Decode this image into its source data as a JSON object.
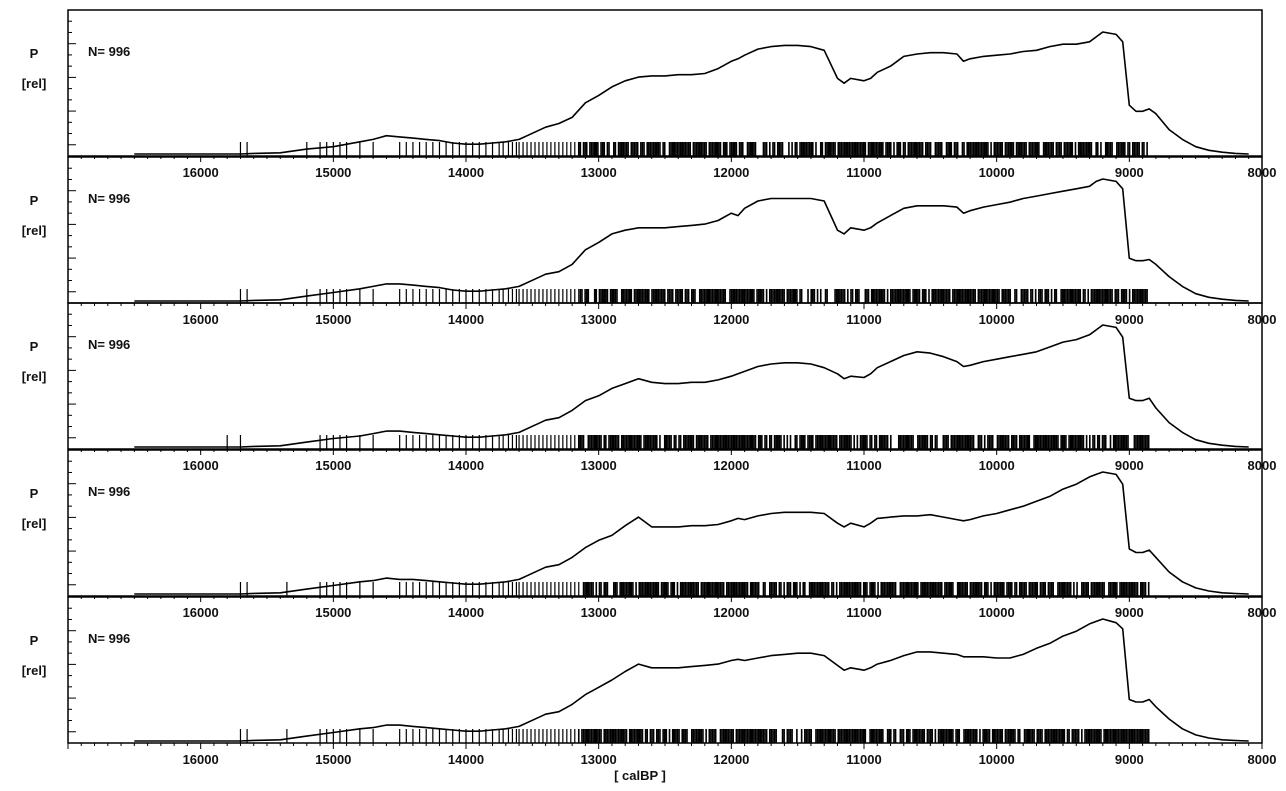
{
  "chart_data": [
    {
      "type": "line",
      "n_label": "N= 996",
      "ylabel_top": "P",
      "ylabel_bottom": "[rel]",
      "xlim": [
        17000,
        8000
      ],
      "x_ticks": [
        "16000",
        "15000",
        "14000",
        "13000",
        "12000",
        "11000",
        "10000",
        "9000",
        "8000"
      ],
      "x": [
        16500,
        15700,
        15600,
        15400,
        15200,
        15000,
        14800,
        14700,
        14600,
        14500,
        14400,
        14300,
        14200,
        14100,
        14000,
        13900,
        13800,
        13700,
        13600,
        13500,
        13400,
        13300,
        13200,
        13100,
        13000,
        12900,
        12800,
        12700,
        12600,
        12500,
        12400,
        12300,
        12200,
        12100,
        12000,
        11950,
        11900,
        11800,
        11700,
        11600,
        11500,
        11400,
        11300,
        11200,
        11150,
        11100,
        11000,
        10950,
        10900,
        10800,
        10700,
        10600,
        10500,
        10400,
        10300,
        10250,
        10200,
        10100,
        10000,
        9900,
        9800,
        9700,
        9600,
        9500,
        9400,
        9300,
        9250,
        9200,
        9100,
        9050,
        9000,
        8950,
        8900,
        8850,
        8800,
        8700,
        8600,
        8500,
        8400,
        8300,
        8200,
        8100
      ],
      "y": [
        0,
        0,
        0.005,
        0.01,
        0.04,
        0.06,
        0.1,
        0.12,
        0.15,
        0.14,
        0.13,
        0.12,
        0.11,
        0.09,
        0.08,
        0.08,
        0.09,
        0.1,
        0.12,
        0.17,
        0.22,
        0.25,
        0.3,
        0.42,
        0.48,
        0.55,
        0.6,
        0.63,
        0.64,
        0.64,
        0.65,
        0.65,
        0.66,
        0.7,
        0.76,
        0.78,
        0.81,
        0.86,
        0.88,
        0.89,
        0.89,
        0.88,
        0.85,
        0.62,
        0.58,
        0.62,
        0.6,
        0.62,
        0.67,
        0.72,
        0.8,
        0.82,
        0.83,
        0.83,
        0.82,
        0.76,
        0.78,
        0.8,
        0.81,
        0.82,
        0.84,
        0.85,
        0.88,
        0.9,
        0.9,
        0.92,
        0.96,
        1.0,
        0.98,
        0.92,
        0.4,
        0.35,
        0.35,
        0.37,
        0.33,
        0.2,
        0.12,
        0.06,
        0.03,
        0.015,
        0.005,
        0
      ],
      "rug": [
        15700,
        15650,
        15200,
        15100,
        15050,
        15000,
        14950,
        14900,
        14800,
        14700,
        14500,
        14450,
        14400,
        14350,
        14300,
        14250,
        14200,
        14150,
        14100,
        14050,
        14000,
        13950,
        13900,
        13850,
        13800,
        13750,
        13720,
        13680,
        13650,
        13620,
        13600,
        13570,
        13540,
        13510,
        13480,
        13450,
        13420,
        13390,
        13360,
        13330,
        13300,
        13270,
        13240,
        13210,
        13180,
        13150
      ]
    },
    {
      "type": "line",
      "n_label": "N= 996",
      "ylabel_top": "P",
      "ylabel_bottom": "[rel]",
      "xlim": [
        17000,
        8000
      ],
      "x_ticks": [
        "16000",
        "15000",
        "14000",
        "13000",
        "12000",
        "11000",
        "10000",
        "9000",
        "8000"
      ],
      "x": [
        16500,
        15700,
        15600,
        15400,
        15200,
        15000,
        14800,
        14700,
        14600,
        14500,
        14400,
        14300,
        14200,
        14100,
        14000,
        13900,
        13800,
        13700,
        13600,
        13500,
        13400,
        13300,
        13200,
        13100,
        13000,
        12900,
        12800,
        12700,
        12600,
        12500,
        12400,
        12300,
        12200,
        12100,
        12000,
        11950,
        11900,
        11800,
        11700,
        11600,
        11500,
        11400,
        11300,
        11200,
        11150,
        11100,
        11000,
        10950,
        10900,
        10800,
        10700,
        10600,
        10500,
        10400,
        10300,
        10250,
        10200,
        10100,
        10000,
        9900,
        9800,
        9700,
        9600,
        9500,
        9400,
        9300,
        9250,
        9200,
        9100,
        9050,
        9000,
        8950,
        8900,
        8850,
        8800,
        8700,
        8600,
        8500,
        8400,
        8300,
        8200,
        8100
      ],
      "y": [
        0,
        0,
        0.005,
        0.01,
        0.04,
        0.07,
        0.1,
        0.12,
        0.14,
        0.14,
        0.13,
        0.12,
        0.11,
        0.09,
        0.08,
        0.08,
        0.09,
        0.1,
        0.12,
        0.17,
        0.22,
        0.24,
        0.3,
        0.42,
        0.48,
        0.55,
        0.58,
        0.6,
        0.6,
        0.6,
        0.61,
        0.62,
        0.63,
        0.66,
        0.72,
        0.7,
        0.76,
        0.82,
        0.84,
        0.84,
        0.84,
        0.84,
        0.82,
        0.58,
        0.55,
        0.6,
        0.58,
        0.6,
        0.64,
        0.7,
        0.76,
        0.78,
        0.78,
        0.78,
        0.77,
        0.72,
        0.74,
        0.77,
        0.79,
        0.81,
        0.84,
        0.86,
        0.88,
        0.9,
        0.92,
        0.94,
        0.98,
        1.0,
        0.98,
        0.92,
        0.35,
        0.33,
        0.33,
        0.34,
        0.3,
        0.2,
        0.12,
        0.06,
        0.03,
        0.015,
        0.005,
        0
      ],
      "rug": [
        15700,
        15650,
        15200,
        15100,
        15050,
        15000,
        14950,
        14900,
        14800,
        14700,
        14500,
        14450,
        14400,
        14350,
        14300,
        14250,
        14200,
        14150,
        14100,
        14050,
        14000,
        13950,
        13900,
        13850,
        13800,
        13750,
        13720,
        13680,
        13650,
        13620,
        13600,
        13570,
        13540,
        13510,
        13480,
        13450,
        13420,
        13390,
        13360,
        13330,
        13300,
        13270,
        13240,
        13210,
        13180,
        13150
      ]
    },
    {
      "type": "line",
      "n_label": "N= 996",
      "ylabel_top": "P",
      "ylabel_bottom": "[rel]",
      "xlim": [
        17000,
        8000
      ],
      "x_ticks": [
        "16000",
        "15000",
        "14000",
        "13000",
        "12000",
        "11000",
        "10000",
        "9000",
        "8000"
      ],
      "x": [
        16500,
        15700,
        15600,
        15400,
        15200,
        15000,
        14800,
        14700,
        14600,
        14500,
        14400,
        14300,
        14200,
        14100,
        14000,
        13900,
        13800,
        13700,
        13600,
        13500,
        13400,
        13300,
        13200,
        13100,
        13000,
        12900,
        12800,
        12700,
        12600,
        12500,
        12400,
        12300,
        12200,
        12100,
        12000,
        11950,
        11900,
        11800,
        11700,
        11600,
        11500,
        11400,
        11300,
        11200,
        11150,
        11100,
        11000,
        10950,
        10900,
        10800,
        10700,
        10600,
        10500,
        10400,
        10300,
        10250,
        10200,
        10100,
        10000,
        9900,
        9800,
        9700,
        9600,
        9500,
        9400,
        9300,
        9250,
        9200,
        9100,
        9050,
        9000,
        8950,
        8900,
        8850,
        8800,
        8700,
        8600,
        8500,
        8400,
        8300,
        8200,
        8100
      ],
      "y": [
        0,
        0,
        0.005,
        0.01,
        0.04,
        0.07,
        0.09,
        0.11,
        0.13,
        0.13,
        0.12,
        0.11,
        0.1,
        0.09,
        0.08,
        0.08,
        0.09,
        0.1,
        0.12,
        0.17,
        0.22,
        0.24,
        0.3,
        0.38,
        0.42,
        0.48,
        0.52,
        0.56,
        0.53,
        0.52,
        0.52,
        0.53,
        0.53,
        0.55,
        0.58,
        0.6,
        0.62,
        0.66,
        0.68,
        0.69,
        0.69,
        0.68,
        0.65,
        0.6,
        0.56,
        0.58,
        0.57,
        0.6,
        0.65,
        0.7,
        0.75,
        0.78,
        0.77,
        0.74,
        0.7,
        0.66,
        0.67,
        0.7,
        0.72,
        0.74,
        0.76,
        0.78,
        0.82,
        0.86,
        0.88,
        0.92,
        0.96,
        1.0,
        0.98,
        0.9,
        0.4,
        0.38,
        0.38,
        0.4,
        0.32,
        0.2,
        0.12,
        0.06,
        0.03,
        0.015,
        0.005,
        0
      ],
      "rug": [
        15800,
        15700,
        15100,
        15050,
        15000,
        14950,
        14900,
        14800,
        14700,
        14500,
        14450,
        14400,
        14350,
        14300,
        14250,
        14200,
        14150,
        14100,
        14050,
        14000,
        13950,
        13900,
        13850,
        13800,
        13750,
        13720,
        13680,
        13650,
        13620,
        13600,
        13570,
        13540,
        13510,
        13480,
        13450,
        13420,
        13390,
        13360,
        13330,
        13300,
        13270,
        13240,
        13210,
        13180,
        13150
      ]
    },
    {
      "type": "line",
      "n_label": "N= 996",
      "ylabel_top": "P",
      "ylabel_bottom": "[rel]",
      "xlim": [
        17000,
        8000
      ],
      "x_ticks": [
        "16000",
        "15000",
        "14000",
        "13000",
        "12000",
        "11000",
        "10000",
        "9000",
        "8000"
      ],
      "x": [
        16500,
        15700,
        15600,
        15400,
        15200,
        15000,
        14800,
        14700,
        14600,
        14500,
        14400,
        14300,
        14200,
        14100,
        14000,
        13900,
        13800,
        13700,
        13600,
        13500,
        13400,
        13300,
        13200,
        13100,
        13000,
        12900,
        12800,
        12700,
        12600,
        12500,
        12400,
        12300,
        12200,
        12100,
        12000,
        11950,
        11900,
        11800,
        11700,
        11600,
        11500,
        11400,
        11300,
        11200,
        11150,
        11100,
        11000,
        10950,
        10900,
        10800,
        10700,
        10600,
        10500,
        10400,
        10300,
        10250,
        10200,
        10100,
        10000,
        9900,
        9800,
        9700,
        9600,
        9500,
        9400,
        9300,
        9250,
        9200,
        9100,
        9050,
        9000,
        8950,
        8900,
        8850,
        8800,
        8700,
        8600,
        8500,
        8400,
        8300,
        8200,
        8100
      ],
      "y": [
        0,
        0,
        0.005,
        0.01,
        0.04,
        0.07,
        0.1,
        0.11,
        0.13,
        0.12,
        0.12,
        0.11,
        0.1,
        0.09,
        0.08,
        0.08,
        0.09,
        0.1,
        0.12,
        0.17,
        0.22,
        0.24,
        0.3,
        0.38,
        0.44,
        0.48,
        0.56,
        0.63,
        0.55,
        0.55,
        0.55,
        0.56,
        0.56,
        0.57,
        0.6,
        0.62,
        0.61,
        0.64,
        0.66,
        0.67,
        0.67,
        0.67,
        0.66,
        0.58,
        0.55,
        0.58,
        0.55,
        0.58,
        0.62,
        0.63,
        0.64,
        0.64,
        0.65,
        0.63,
        0.61,
        0.6,
        0.61,
        0.64,
        0.66,
        0.69,
        0.72,
        0.76,
        0.8,
        0.86,
        0.9,
        0.96,
        0.98,
        1.0,
        0.98,
        0.9,
        0.37,
        0.34,
        0.34,
        0.36,
        0.3,
        0.18,
        0.1,
        0.05,
        0.025,
        0.01,
        0.004,
        0
      ],
      "rug": [
        15700,
        15650,
        15350,
        15100,
        15050,
        15000,
        14950,
        14900,
        14800,
        14700,
        14500,
        14450,
        14400,
        14350,
        14300,
        14250,
        14200,
        14150,
        14100,
        14050,
        14000,
        13950,
        13900,
        13850,
        13800,
        13750,
        13720,
        13680,
        13650,
        13620,
        13600,
        13570,
        13540,
        13510,
        13480,
        13450,
        13420,
        13390,
        13360,
        13330,
        13300,
        13270,
        13240,
        13210,
        13180,
        13150
      ]
    },
    {
      "type": "line",
      "n_label": "N= 996",
      "ylabel_top": "P",
      "ylabel_bottom": "[rel]",
      "xlim": [
        17000,
        8000
      ],
      "x_ticks": [
        "16000",
        "15000",
        "14000",
        "13000",
        "12000",
        "11000",
        "10000",
        "9000",
        "8000"
      ],
      "x": [
        16500,
        15700,
        15600,
        15400,
        15200,
        15000,
        14800,
        14700,
        14600,
        14500,
        14400,
        14300,
        14200,
        14100,
        14000,
        13900,
        13800,
        13700,
        13600,
        13500,
        13400,
        13300,
        13200,
        13100,
        13000,
        12900,
        12800,
        12700,
        12600,
        12500,
        12400,
        12300,
        12200,
        12100,
        12000,
        11950,
        11900,
        11800,
        11700,
        11600,
        11500,
        11400,
        11300,
        11200,
        11150,
        11100,
        11000,
        10950,
        10900,
        10800,
        10700,
        10600,
        10500,
        10400,
        10300,
        10250,
        10200,
        10100,
        10000,
        9900,
        9800,
        9700,
        9600,
        9500,
        9400,
        9300,
        9250,
        9200,
        9100,
        9050,
        9000,
        8950,
        8900,
        8850,
        8800,
        8700,
        8600,
        8500,
        8400,
        8300,
        8200,
        8100
      ],
      "y": [
        0,
        0,
        0.005,
        0.01,
        0.04,
        0.07,
        0.1,
        0.11,
        0.13,
        0.13,
        0.12,
        0.11,
        0.1,
        0.09,
        0.08,
        0.08,
        0.09,
        0.1,
        0.12,
        0.17,
        0.22,
        0.24,
        0.3,
        0.38,
        0.44,
        0.5,
        0.57,
        0.63,
        0.6,
        0.6,
        0.6,
        0.61,
        0.62,
        0.63,
        0.66,
        0.67,
        0.66,
        0.68,
        0.7,
        0.71,
        0.72,
        0.72,
        0.7,
        0.62,
        0.58,
        0.6,
        0.58,
        0.6,
        0.63,
        0.66,
        0.7,
        0.73,
        0.73,
        0.72,
        0.71,
        0.69,
        0.69,
        0.69,
        0.68,
        0.68,
        0.71,
        0.76,
        0.8,
        0.86,
        0.9,
        0.96,
        0.98,
        1.0,
        0.97,
        0.92,
        0.34,
        0.32,
        0.32,
        0.34,
        0.28,
        0.18,
        0.1,
        0.05,
        0.025,
        0.01,
        0.004,
        0
      ],
      "rug": [
        15700,
        15650,
        15350,
        15100,
        15050,
        15000,
        14950,
        14900,
        14800,
        14700,
        14500,
        14450,
        14400,
        14350,
        14300,
        14250,
        14200,
        14150,
        14100,
        14050,
        14000,
        13950,
        13900,
        13850,
        13800,
        13750,
        13720,
        13680,
        13650,
        13620,
        13600,
        13570,
        13540,
        13510,
        13480,
        13450,
        13420,
        13390,
        13360,
        13330,
        13300,
        13270,
        13240,
        13210,
        13180,
        13150
      ]
    }
  ],
  "x_axis_label": "[ calBP ]"
}
